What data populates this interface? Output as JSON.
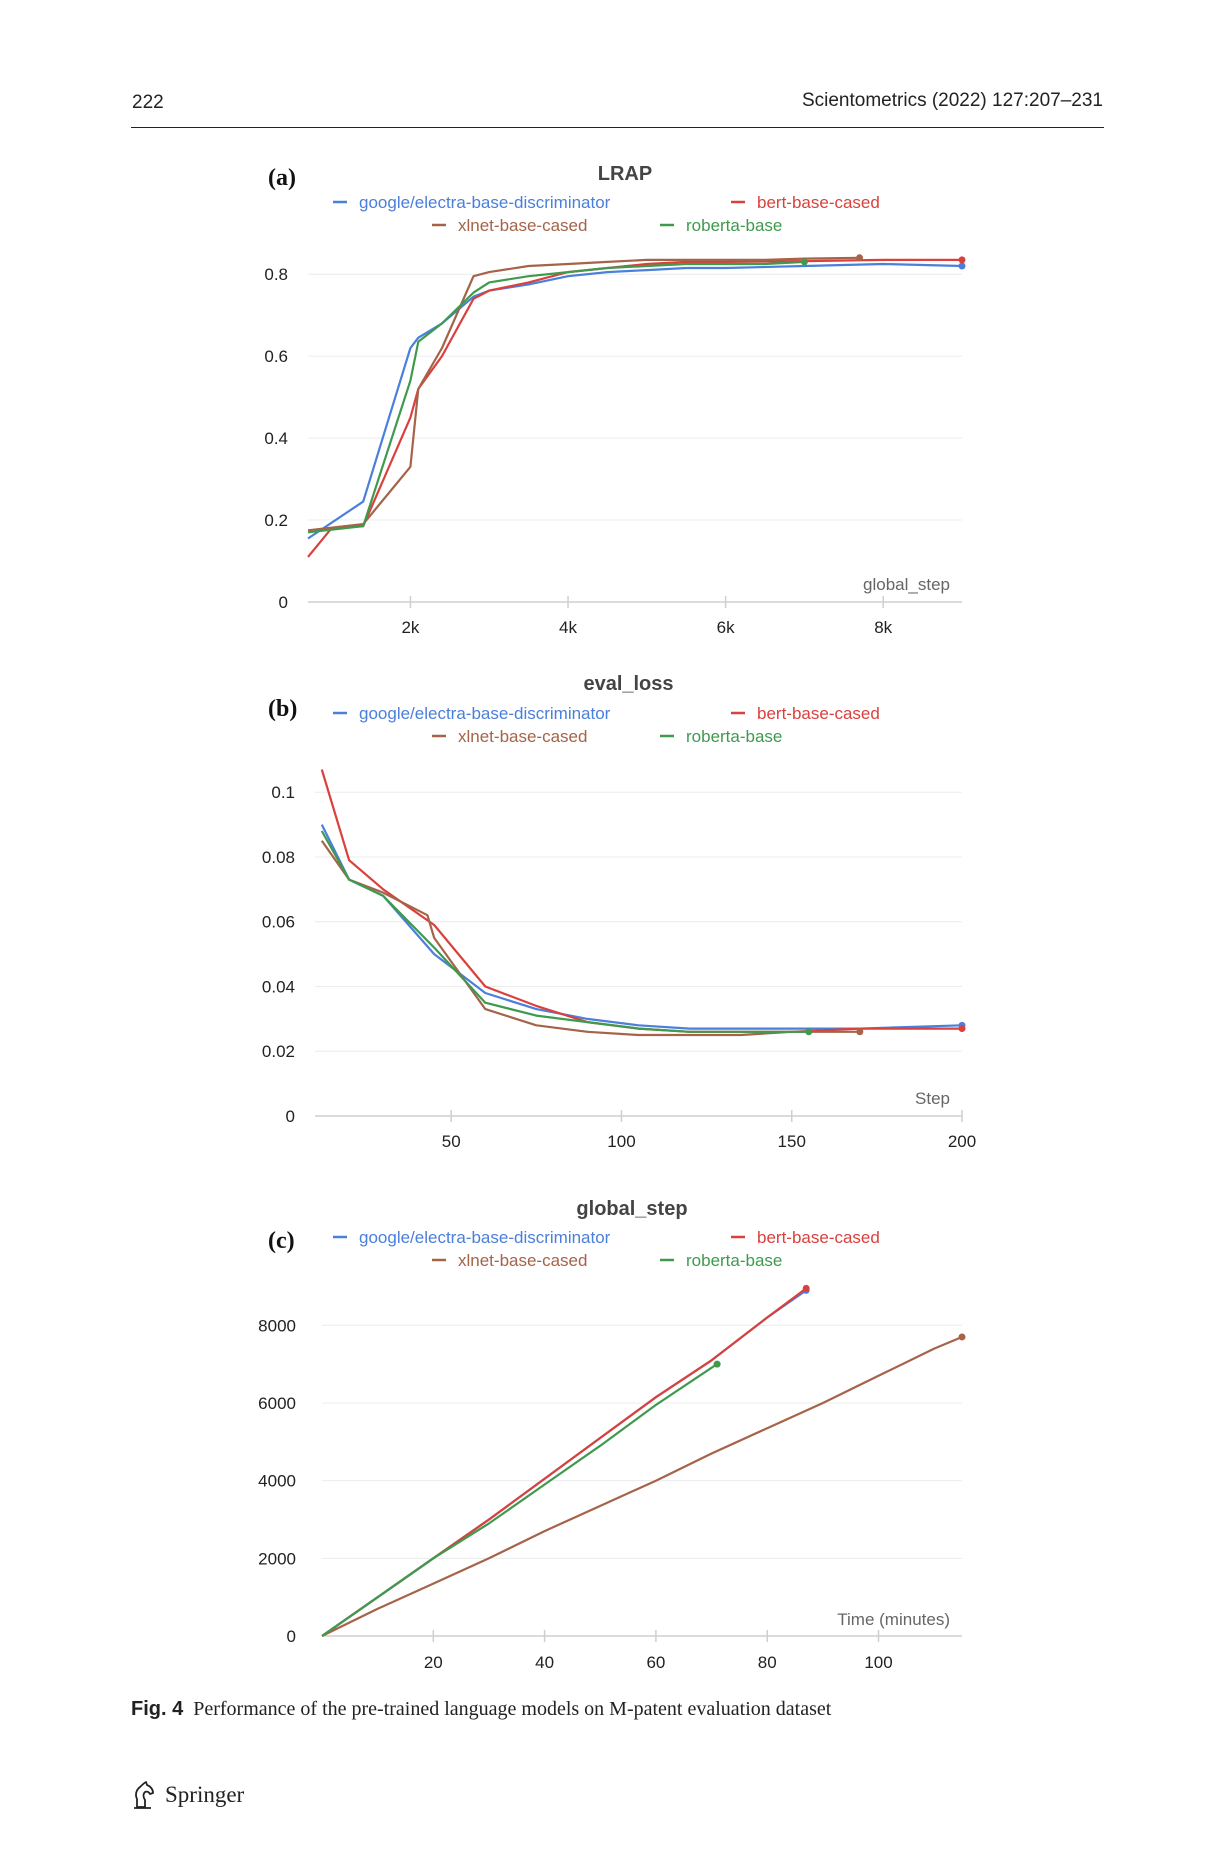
{
  "header": {
    "page_number": "222",
    "journal": "Scientometrics (2022) 127:207–231"
  },
  "caption": {
    "label": "Fig. 4",
    "text": "Performance of the pre-trained language models on M-patent evaluation dataset"
  },
  "footer": {
    "publisher": "Springer"
  },
  "colors": {
    "electra": "#4a7fdb",
    "bert": "#d9413d",
    "xlnet": "#a56349",
    "roberta": "#3f9a4e"
  },
  "chart_data": [
    {
      "panel_label": "(a)",
      "type": "line",
      "title": "LRAP",
      "xlabel": "global_step",
      "ylabel": "",
      "xlim": [
        700,
        9000
      ],
      "ylim": [
        0,
        0.82
      ],
      "xticks": [
        2000,
        4000,
        6000,
        8000
      ],
      "xtick_labels": [
        "2k",
        "4k",
        "6k",
        "8k"
      ],
      "yticks": [
        0,
        0.2,
        0.4,
        0.6,
        0.8
      ],
      "ytick_labels": [
        "0",
        "0.2",
        "0.4",
        "0.6",
        "0.8"
      ],
      "grid": true,
      "legend": "top",
      "series": [
        {
          "name": "google/electra-base-discriminator",
          "color": "#4a7fdb",
          "x": [
            700,
            1400,
            2000,
            2100,
            2400,
            2800,
            3000,
            3500,
            4000,
            4500,
            5000,
            5500,
            6000,
            7000,
            8000,
            9000
          ],
          "y": [
            0.155,
            0.245,
            0.62,
            0.645,
            0.68,
            0.745,
            0.76,
            0.775,
            0.795,
            0.805,
            0.81,
            0.815,
            0.815,
            0.82,
            0.825,
            0.82
          ],
          "end_marker": true
        },
        {
          "name": "bert-base-cased",
          "color": "#d9413d",
          "x": [
            700,
            1000,
            1400,
            2000,
            2100,
            2400,
            2800,
            3000,
            3500,
            4000,
            4500,
            5000,
            5500,
            6000,
            7000,
            8000,
            9000
          ],
          "y": [
            0.11,
            0.18,
            0.185,
            0.45,
            0.52,
            0.6,
            0.74,
            0.76,
            0.78,
            0.805,
            0.815,
            0.825,
            0.83,
            0.83,
            0.832,
            0.835,
            0.835
          ],
          "end_marker": true
        },
        {
          "name": "xlnet-base-cased",
          "color": "#a56349",
          "x": [
            700,
            1400,
            2000,
            2100,
            2400,
            2800,
            3000,
            3500,
            4000,
            4500,
            5000,
            5500,
            6000,
            6500,
            7000,
            7700
          ],
          "y": [
            0.175,
            0.19,
            0.33,
            0.52,
            0.62,
            0.795,
            0.805,
            0.82,
            0.825,
            0.83,
            0.835,
            0.835,
            0.835,
            0.835,
            0.838,
            0.84
          ],
          "end_marker": true
        },
        {
          "name": "roberta-base",
          "color": "#3f9a4e",
          "x": [
            700,
            1400,
            2000,
            2100,
            2400,
            2800,
            3000,
            3500,
            4000,
            4500,
            5000,
            5500,
            6000,
            6500,
            7000
          ],
          "y": [
            0.17,
            0.185,
            0.54,
            0.635,
            0.68,
            0.755,
            0.78,
            0.795,
            0.805,
            0.815,
            0.82,
            0.825,
            0.825,
            0.825,
            0.83
          ],
          "end_marker": true
        }
      ]
    },
    {
      "panel_label": "(b)",
      "type": "line",
      "title": "eval_loss",
      "xlabel": "Step",
      "ylabel": "",
      "xlim": [
        10,
        200
      ],
      "ylim": [
        0,
        0.105
      ],
      "xticks": [
        50,
        100,
        150,
        200
      ],
      "xtick_labels": [
        "50",
        "100",
        "150",
        "200"
      ],
      "yticks": [
        0,
        0.02,
        0.04,
        0.06,
        0.08,
        0.1
      ],
      "ytick_labels": [
        "0",
        "0.02",
        "0.04",
        "0.06",
        "0.08",
        "0.1"
      ],
      "grid": true,
      "legend": "top",
      "series": [
        {
          "name": "google/electra-base-discriminator",
          "color": "#4a7fdb",
          "x": [
            12,
            20,
            30,
            45,
            60,
            75,
            90,
            105,
            120,
            135,
            150,
            170,
            200
          ],
          "y": [
            0.09,
            0.073,
            0.068,
            0.05,
            0.038,
            0.033,
            0.03,
            0.028,
            0.027,
            0.027,
            0.027,
            0.027,
            0.028
          ],
          "end_marker": true
        },
        {
          "name": "bert-base-cased",
          "color": "#d9413d",
          "x": [
            12,
            20,
            30,
            45,
            60,
            75,
            90,
            105,
            120,
            135,
            150,
            170,
            200
          ],
          "y": [
            0.107,
            0.079,
            0.07,
            0.059,
            0.04,
            0.034,
            0.029,
            0.027,
            0.026,
            0.026,
            0.026,
            0.027,
            0.027
          ],
          "end_marker": true
        },
        {
          "name": "xlnet-base-cased",
          "color": "#a56349",
          "x": [
            12,
            20,
            30,
            43,
            45,
            60,
            75,
            90,
            105,
            120,
            135,
            150,
            170
          ],
          "y": [
            0.085,
            0.073,
            0.069,
            0.062,
            0.055,
            0.033,
            0.028,
            0.026,
            0.025,
            0.025,
            0.025,
            0.026,
            0.026
          ],
          "end_marker": true
        },
        {
          "name": "roberta-base",
          "color": "#3f9a4e",
          "x": [
            12,
            20,
            30,
            45,
            60,
            75,
            90,
            105,
            120,
            135,
            155
          ],
          "y": [
            0.088,
            0.073,
            0.068,
            0.052,
            0.035,
            0.031,
            0.029,
            0.027,
            0.026,
            0.026,
            0.026
          ],
          "end_marker": true
        }
      ]
    },
    {
      "panel_label": "(c)",
      "type": "line",
      "title": "global_step",
      "xlabel": "Time (minutes)",
      "ylabel": "",
      "xlim": [
        0,
        115
      ],
      "ylim": [
        0,
        8600
      ],
      "xticks": [
        20,
        40,
        60,
        80,
        100
      ],
      "xtick_labels": [
        "20",
        "40",
        "60",
        "80",
        "100"
      ],
      "yticks": [
        0,
        2000,
        4000,
        6000,
        8000
      ],
      "ytick_labels": [
        "0",
        "2000",
        "4000",
        "6000",
        "8000"
      ],
      "grid": true,
      "legend": "top",
      "series": [
        {
          "name": "google/electra-base-discriminator",
          "color": "#4a7fdb",
          "x": [
            0,
            10,
            20,
            30,
            40,
            50,
            60,
            70,
            80,
            87
          ],
          "y": [
            0,
            1000,
            2000,
            3000,
            4050,
            5100,
            6150,
            7100,
            8200,
            8900
          ],
          "end_marker": true
        },
        {
          "name": "bert-base-cased",
          "color": "#d9413d",
          "x": [
            0,
            10,
            20,
            30,
            40,
            50,
            60,
            70,
            80,
            87
          ],
          "y": [
            0,
            1000,
            2000,
            3000,
            4050,
            5100,
            6150,
            7100,
            8200,
            8950
          ],
          "end_marker": true
        },
        {
          "name": "xlnet-base-cased",
          "color": "#a56349",
          "x": [
            0,
            10,
            20,
            30,
            40,
            50,
            60,
            70,
            80,
            90,
            100,
            110,
            115
          ],
          "y": [
            0,
            700,
            1350,
            2000,
            2700,
            3350,
            4000,
            4700,
            5350,
            6000,
            6700,
            7400,
            7700
          ],
          "end_marker": true
        },
        {
          "name": "roberta-base",
          "color": "#3f9a4e",
          "x": [
            0,
            10,
            20,
            30,
            40,
            50,
            60,
            71
          ],
          "y": [
            0,
            1000,
            2000,
            2900,
            3900,
            4900,
            5950,
            7000
          ],
          "end_marker": true
        }
      ]
    }
  ]
}
